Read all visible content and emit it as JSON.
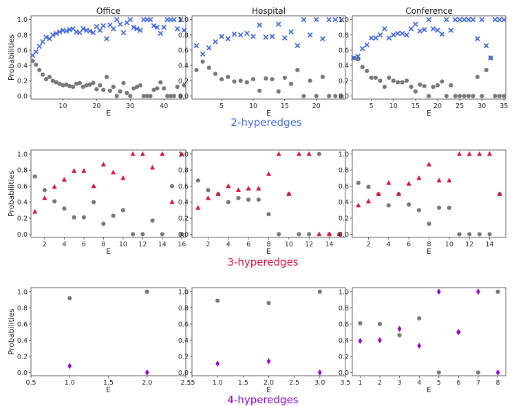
{
  "colors": {
    "gray": "#777777",
    "blue": "#4169e1",
    "red": "#dc143c",
    "purple": "#9400d3"
  },
  "chart_data": [
    {
      "type": "scatter",
      "title": "Office",
      "row_label": "2-hyperedges",
      "xlabel": "E",
      "ylabel": "Probabilities",
      "xlim": [
        0.5,
        46.5
      ],
      "ylim": [
        -0.04,
        1.05
      ],
      "xticks": [
        10,
        20,
        30,
        40
      ],
      "yticks": [
        0.0,
        0.2,
        0.4,
        0.6,
        0.8,
        1.0
      ],
      "marker": "x",
      "accent": "blue",
      "series": [
        {
          "name": "gray",
          "x": [
            1,
            2,
            3,
            4,
            5,
            6,
            7,
            8,
            9,
            10,
            11,
            12,
            13,
            14,
            15,
            16,
            17,
            18,
            19,
            20,
            21,
            22,
            23,
            24,
            25,
            26,
            27,
            28,
            29,
            30,
            31,
            32,
            33,
            34,
            35,
            36,
            37,
            38,
            39,
            40,
            41,
            42,
            43,
            44,
            45,
            46
          ],
          "y": [
            0.46,
            0.41,
            0.34,
            0.28,
            0.22,
            0.25,
            0.2,
            0.18,
            0.16,
            0.14,
            0.15,
            0.13,
            0.12,
            0.16,
            0.17,
            0.12,
            0.14,
            0.15,
            0.17,
            0.09,
            0.14,
            0.08,
            0.25,
            0.07,
            0.12,
            0.0,
            0.06,
            0.17,
            0.04,
            0.0,
            0.1,
            0.12,
            0.14,
            0.0,
            0.0,
            0.0,
            0.08,
            0.1,
            0.18,
            0.1,
            0.0,
            0.0,
            0.0,
            0.12,
            0.0,
            0.14
          ]
        },
        {
          "name": "colored",
          "x": [
            1,
            2,
            3,
            4,
            5,
            6,
            7,
            8,
            9,
            10,
            11,
            12,
            13,
            14,
            15,
            16,
            17,
            18,
            19,
            20,
            21,
            22,
            23,
            24,
            25,
            26,
            27,
            28,
            29,
            30,
            31,
            32,
            33,
            34,
            35,
            36,
            37,
            38,
            39,
            40,
            41,
            42,
            43,
            44,
            45,
            46
          ],
          "y": [
            0.53,
            0.58,
            0.65,
            0.71,
            0.77,
            0.75,
            0.8,
            0.82,
            0.84,
            0.86,
            0.85,
            0.87,
            0.88,
            0.84,
            0.83,
            0.88,
            0.86,
            0.85,
            0.83,
            0.91,
            0.86,
            0.92,
            0.75,
            0.93,
            0.88,
            1.0,
            0.94,
            0.83,
            0.96,
            1.0,
            0.9,
            0.88,
            0.86,
            1.0,
            1.0,
            1.0,
            0.92,
            0.9,
            0.82,
            0.9,
            1.0,
            1.0,
            1.0,
            0.88,
            1.0,
            0.86
          ]
        }
      ]
    },
    {
      "type": "scatter",
      "title": "Hospital",
      "row_label": "2-hyperedges",
      "xlabel": "E",
      "ylabel": "",
      "xlim": [
        0.3,
        24.6
      ],
      "ylim": [
        -0.04,
        1.05
      ],
      "xticks": [
        5,
        10,
        15,
        20
      ],
      "yticks": [
        0.0,
        0.2,
        0.4,
        0.6,
        0.8,
        1.0
      ],
      "marker": "x",
      "accent": "blue",
      "series": [
        {
          "name": "gray",
          "x": [
            1,
            2,
            3,
            4,
            5,
            6,
            7,
            8,
            9,
            10,
            11,
            12,
            13,
            14,
            15,
            16,
            17,
            18,
            19,
            20,
            21,
            22,
            23,
            24
          ],
          "y": [
            0.34,
            0.45,
            0.37,
            0.29,
            0.22,
            0.25,
            0.19,
            0.2,
            0.18,
            0.22,
            0.07,
            0.23,
            0.22,
            0.06,
            0.24,
            0.16,
            0.34,
            0.0,
            0.2,
            0.0,
            0.25,
            0.0,
            0.0,
            0.0
          ]
        },
        {
          "name": "colored",
          "x": [
            1,
            2,
            3,
            4,
            5,
            6,
            7,
            8,
            9,
            10,
            11,
            12,
            13,
            14,
            15,
            16,
            17,
            18,
            19,
            20,
            21,
            22,
            23,
            24
          ],
          "y": [
            0.66,
            0.55,
            0.63,
            0.71,
            0.78,
            0.75,
            0.81,
            0.8,
            0.82,
            0.78,
            0.93,
            0.77,
            0.78,
            0.94,
            0.76,
            0.84,
            0.66,
            1.0,
            0.8,
            1.0,
            0.75,
            1.0,
            1.0,
            1.0
          ]
        }
      ]
    },
    {
      "type": "scatter",
      "title": "Conference",
      "row_label": "2-hyperedges",
      "xlabel": "E",
      "ylabel": "",
      "xlim": [
        0.7,
        35.4
      ],
      "ylim": [
        -0.04,
        1.05
      ],
      "xticks": [
        5,
        10,
        15,
        20,
        25,
        30,
        35
      ],
      "yticks": [
        0.0,
        0.2,
        0.4,
        0.6,
        0.8,
        1.0
      ],
      "marker": "x",
      "accent": "blue",
      "series": [
        {
          "name": "gray",
          "x": [
            1,
            2,
            3,
            4,
            5,
            6,
            7,
            8,
            9,
            10,
            11,
            12,
            13,
            14,
            15,
            16,
            17,
            18,
            19,
            20,
            21,
            22,
            23,
            24,
            25,
            26,
            27,
            28,
            29,
            30,
            31,
            32,
            33,
            34,
            35
          ],
          "y": [
            0.5,
            0.48,
            0.38,
            0.33,
            0.24,
            0.24,
            0.2,
            0.12,
            0.24,
            0.2,
            0.18,
            0.18,
            0.2,
            0.12,
            0.06,
            0.15,
            0.13,
            0.0,
            0.12,
            0.14,
            0.19,
            0.0,
            0.14,
            0.0,
            0.0,
            0.0,
            0.0,
            0.0,
            0.25,
            0.0,
            0.34,
            0.5,
            0.0,
            0.0,
            0.0
          ]
        },
        {
          "name": "colored",
          "x": [
            1,
            2,
            3,
            4,
            5,
            6,
            7,
            8,
            9,
            10,
            11,
            12,
            13,
            14,
            15,
            16,
            17,
            18,
            19,
            20,
            21,
            22,
            23,
            24,
            25,
            26,
            27,
            28,
            29,
            30,
            31,
            32,
            33,
            34,
            35
          ],
          "y": [
            0.5,
            0.52,
            0.62,
            0.67,
            0.76,
            0.76,
            0.8,
            0.88,
            0.76,
            0.8,
            0.82,
            0.82,
            0.8,
            0.88,
            0.94,
            0.85,
            0.87,
            1.0,
            0.88,
            0.86,
            0.81,
            1.0,
            0.86,
            1.0,
            1.0,
            1.0,
            1.0,
            1.0,
            0.75,
            1.0,
            0.66,
            0.5,
            1.0,
            1.0,
            1.0
          ]
        }
      ]
    },
    {
      "type": "scatter",
      "title": "",
      "row_label": "3-hyperedges",
      "xlabel": "E",
      "ylabel": "Probabilities",
      "xlim": [
        0.6,
        16.4
      ],
      "ylim": [
        -0.04,
        1.05
      ],
      "xticks": [
        2,
        4,
        6,
        8,
        10,
        12,
        14,
        16
      ],
      "yticks": [
        0.0,
        0.2,
        0.4,
        0.6,
        0.8,
        1.0
      ],
      "marker": "triangle",
      "accent": "red",
      "series": [
        {
          "name": "gray",
          "x": [
            1,
            2,
            3,
            4,
            5,
            6,
            7,
            8,
            9,
            10,
            11,
            12,
            13,
            14,
            15,
            16
          ],
          "y": [
            0.72,
            0.55,
            0.41,
            0.32,
            0.21,
            0.21,
            0.4,
            0.13,
            0.23,
            0.3,
            0.0,
            0.0,
            0.17,
            0.0,
            0.6,
            0.0
          ]
        },
        {
          "name": "colored",
          "x": [
            1,
            2,
            3,
            4,
            5,
            6,
            7,
            8,
            9,
            10,
            11,
            12,
            13,
            14,
            15,
            16
          ],
          "y": [
            0.28,
            0.45,
            0.59,
            0.68,
            0.79,
            0.79,
            0.6,
            0.87,
            0.77,
            0.7,
            1.0,
            1.0,
            0.83,
            1.0,
            0.4,
            1.0
          ]
        }
      ]
    },
    {
      "type": "scatter",
      "title": "",
      "row_label": "3-hyperedges",
      "xlabel": "E",
      "ylabel": "",
      "xlim": [
        0.4,
        15.6
      ],
      "ylim": [
        -0.04,
        1.05
      ],
      "xticks": [
        2,
        4,
        6,
        8,
        10,
        12,
        14
      ],
      "yticks": [
        0.0,
        0.2,
        0.4,
        0.6,
        0.8,
        1.0
      ],
      "marker": "triangle",
      "accent": "red",
      "series": [
        {
          "name": "gray",
          "x": [
            1,
            2,
            3,
            4,
            5,
            6,
            7,
            8,
            9,
            10,
            11,
            12,
            13,
            14,
            15
          ],
          "y": [
            0.67,
            0.55,
            0.5,
            0.4,
            0.45,
            0.43,
            0.43,
            0.25,
            0.0,
            0.5,
            0.0,
            0.0,
            1.0,
            0.0,
            0.0
          ]
        },
        {
          "name": "colored",
          "x": [
            1,
            2,
            3,
            4,
            5,
            6,
            7,
            8,
            9,
            10,
            11,
            12,
            13,
            14,
            15
          ],
          "y": [
            0.33,
            0.45,
            0.5,
            0.6,
            0.55,
            0.57,
            0.57,
            0.75,
            1.0,
            0.5,
            1.0,
            1.0,
            0.0,
            0.0,
            0.0
          ]
        }
      ]
    },
    {
      "type": "scatter",
      "title": "",
      "row_label": "3-hyperedges",
      "xlabel": "E",
      "ylabel": "",
      "xlim": [
        0.4,
        15.6
      ],
      "ylim": [
        -0.04,
        1.05
      ],
      "xticks": [
        2,
        4,
        6,
        8,
        10,
        12,
        14
      ],
      "yticks": [
        0.0,
        0.2,
        0.4,
        0.6,
        0.8,
        1.0
      ],
      "marker": "triangle",
      "accent": "red",
      "series": [
        {
          "name": "gray",
          "x": [
            1,
            2,
            3,
            4,
            5,
            6,
            7,
            8,
            9,
            10,
            11,
            12,
            13,
            14,
            15
          ],
          "y": [
            0.64,
            0.59,
            0.5,
            0.36,
            0.5,
            0.37,
            0.3,
            0.13,
            0.33,
            0.33,
            0.0,
            0.0,
            0.0,
            0.0,
            0.5
          ]
        },
        {
          "name": "colored",
          "x": [
            1,
            2,
            3,
            4,
            5,
            6,
            7,
            8,
            9,
            10,
            11,
            12,
            13,
            14,
            15
          ],
          "y": [
            0.36,
            0.41,
            0.5,
            0.64,
            0.5,
            0.63,
            0.7,
            0.87,
            0.67,
            0.67,
            1.0,
            1.0,
            1.0,
            1.0,
            0.5
          ]
        }
      ]
    },
    {
      "type": "scatter",
      "title": "",
      "row_label": "4-hyperedges",
      "xlabel": "E",
      "ylabel": "Probabilities",
      "xlim": [
        0.5,
        2.5
      ],
      "ylim": [
        -0.04,
        1.05
      ],
      "xticks": [
        0.5,
        1.0,
        1.5,
        2.0,
        2.5
      ],
      "ticklabels": [
        "0.5",
        "1.0",
        "1.5",
        "2.0",
        "2.5"
      ],
      "yticks": [
        0.0,
        0.2,
        0.4,
        0.6,
        0.8,
        1.0
      ],
      "marker": "diamond",
      "accent": "purple",
      "series": [
        {
          "name": "gray",
          "x": [
            1,
            2
          ],
          "y": [
            0.92,
            1.0
          ]
        },
        {
          "name": "colored",
          "x": [
            1,
            2
          ],
          "y": [
            0.08,
            0.0
          ]
        }
      ]
    },
    {
      "type": "scatter",
      "title": "",
      "row_label": "4-hyperedges",
      "xlabel": "E",
      "ylabel": "",
      "xlim": [
        0.5,
        3.5
      ],
      "ylim": [
        -0.04,
        1.05
      ],
      "xticks": [
        0.5,
        1.0,
        1.5,
        2.0,
        2.5,
        3.0,
        3.5
      ],
      "ticklabels": [
        ".5",
        "1.0",
        "1.5",
        "2.0",
        "2.5",
        "3.0",
        "3.5"
      ],
      "yticks": [
        0.0,
        0.2,
        0.4,
        0.6,
        0.8,
        1.0
      ],
      "marker": "diamond",
      "accent": "purple",
      "series": [
        {
          "name": "gray",
          "x": [
            1,
            2,
            3
          ],
          "y": [
            0.89,
            0.86,
            1.0
          ]
        },
        {
          "name": "colored",
          "x": [
            1,
            2,
            3
          ],
          "y": [
            0.11,
            0.14,
            0.0
          ]
        }
      ]
    },
    {
      "type": "scatter",
      "title": "",
      "row_label": "4-hyperedges",
      "xlabel": "E",
      "ylabel": "",
      "xlim": [
        0.6,
        8.4
      ],
      "ylim": [
        -0.04,
        1.05
      ],
      "xticks": [
        1,
        2,
        3,
        4,
        5,
        6,
        7,
        8
      ],
      "yticks": [
        0.0,
        0.2,
        0.4,
        0.6,
        0.8,
        1.0
      ],
      "marker": "diamond",
      "accent": "purple",
      "series": [
        {
          "name": "gray",
          "x": [
            1,
            2,
            3,
            4,
            5,
            6,
            7,
            8
          ],
          "y": [
            0.61,
            0.6,
            0.46,
            0.67,
            0.0,
            0.5,
            0.0,
            1.0
          ]
        },
        {
          "name": "colored",
          "x": [
            1,
            2,
            3,
            4,
            5,
            6,
            7,
            8
          ],
          "y": [
            0.39,
            0.4,
            0.54,
            0.33,
            1.0,
            0.5,
            1.0,
            0.0
          ]
        }
      ]
    }
  ]
}
